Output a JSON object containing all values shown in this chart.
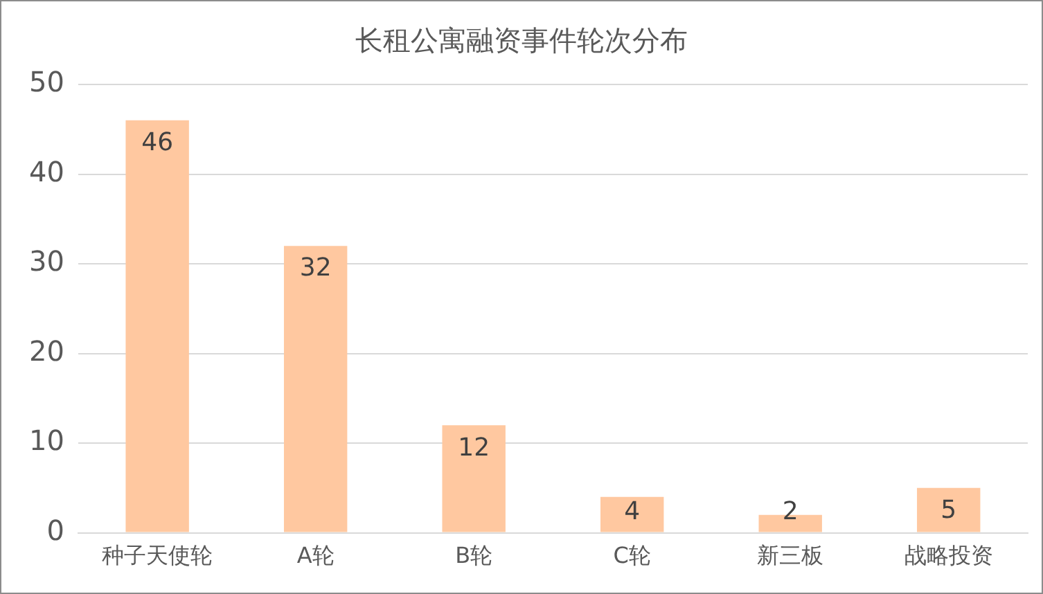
{
  "chart_data": {
    "type": "bar",
    "title": "长租公寓融资事件轮次分布",
    "categories": [
      "种子天使轮",
      "A轮",
      "B轮",
      "C轮",
      "新三板",
      "战略投资"
    ],
    "values": [
      46,
      32,
      12,
      4,
      2,
      5
    ],
    "color": "#ffc8a0",
    "ylim": [
      0,
      50
    ],
    "yticks": [
      0,
      10,
      20,
      30,
      40,
      50
    ],
    "grid": "y",
    "data_labels": true
  }
}
